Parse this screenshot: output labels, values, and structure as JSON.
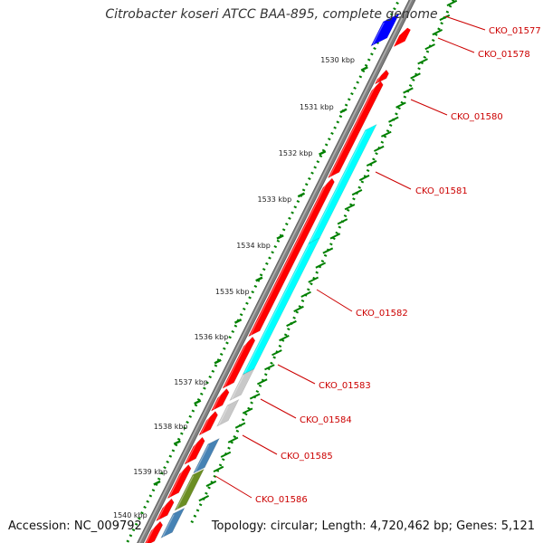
{
  "title": "Citrobacter koseri ATCC BAA-895, complete genome",
  "accession_label": "Accession:",
  "accession": "NC_009792",
  "topology_label": "Topology:",
  "topology": "circular",
  "length_label": "Length:",
  "length": "4,720,462 bp",
  "genes_label": "Genes:",
  "genes": "5,121",
  "colors": {
    "cds": "#ff0000",
    "cds_faded": "#f08080",
    "rna": "#0000ff",
    "cog_cyan": "#00ffff",
    "cog_grey": "#c8c8c8",
    "cog_steelblue": "#4682b4",
    "cog_olive": "#6b8e23",
    "backbone": "#808080",
    "tick": "#008000",
    "gene_label": "#cc0000"
  },
  "kbp_ticks": [
    "1530 kbp",
    "1531 kbp",
    "1532 kbp",
    "1533 kbp",
    "1534 kbp",
    "1535 kbp",
    "1536 kbp",
    "1537 kbp",
    "1538 kbp",
    "1539 kbp",
    "1540 kbp"
  ],
  "gene_labels": [
    "CKO_01577",
    "CKO_01578",
    "CKO_01580",
    "CKO_01581",
    "CKO_01582",
    "CKO_01583",
    "CKO_01584",
    "CKO_01585",
    "CKO_01586"
  ]
}
